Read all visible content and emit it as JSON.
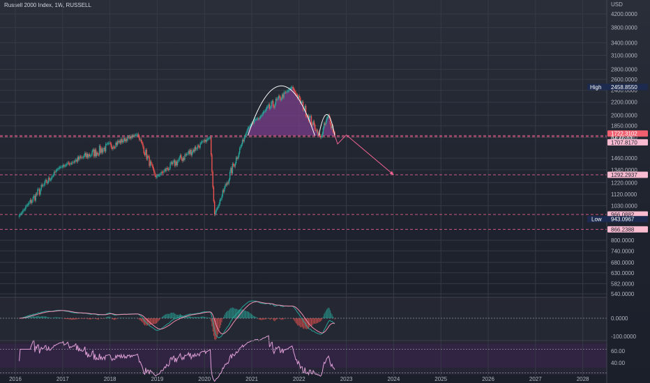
{
  "header": {
    "title": "Russell 2000 Index, 1W, RUSSELL"
  },
  "colors": {
    "up": "#26a69a",
    "down": "#ef5350",
    "level": "#f06292",
    "pattern_fill": "#7b3f8c",
    "macd": "#26a69a",
    "signal": "#f48fb1",
    "rsi": "#e1a1d8",
    "high_badge": "#1b2a4e",
    "price_badge": "#f06070",
    "level_badge": "#f8bbd0"
  },
  "chart_data": [
    {
      "type": "candlestick",
      "title": "Russell 2000 Index, 1W, RUSSELL",
      "currency": "USD",
      "scale": "log",
      "ylim": [
        520,
        4300
      ],
      "x_tick_labels": [
        "2016",
        "2017",
        "2018",
        "2019",
        "2020",
        "2021",
        "2022",
        "2023",
        "2024",
        "2025",
        "2026",
        "2027",
        "2028"
      ],
      "y_tick_labels": [
        "4200.0000",
        "3800.0000",
        "3400.0000",
        "3100.0000",
        "2800.0000",
        "2600.0000",
        "2400.0000",
        "2200.0000",
        "2000.0000",
        "1850.0000",
        "1700.0000",
        "1460.0000",
        "1340.0000",
        "1220.0000",
        "1120.0000",
        "1030.0000",
        "800.0000",
        "740.0000",
        "680.0000",
        "630.0000",
        "582.0000",
        "540.0000"
      ],
      "key_points": [
        {
          "date": "2016-02-01",
          "close": 960
        },
        {
          "date": "2016-12-01",
          "close": 1360
        },
        {
          "date": "2018-08-01",
          "close": 1740
        },
        {
          "date": "2018-12-20",
          "close": 1270
        },
        {
          "date": "2020-02-15",
          "close": 1700
        },
        {
          "date": "2020-03-18",
          "close": 966
        },
        {
          "date": "2020-12-01",
          "close": 1820
        },
        {
          "date": "2021-11-08",
          "close": 2458.855
        },
        {
          "date": "2022-06-15",
          "close": 1700
        },
        {
          "date": "2022-08-15",
          "close": 2000
        },
        {
          "date": "2022-10-03",
          "close": 1722.31
        }
      ],
      "levels": [
        {
          "value": 1722.3102,
          "label": "1722.3102",
          "sublabel": "04:46:03",
          "style": "price"
        },
        {
          "value": 1707.817,
          "label": "1707.8170",
          "style": "level"
        },
        {
          "value": 1292.2937,
          "label": "1292.2937",
          "style": "level"
        },
        {
          "value": 966.0882,
          "label": "966.0882",
          "style": "level"
        },
        {
          "value": 866.2388,
          "label": "866.2388",
          "style": "level"
        }
      ],
      "high": {
        "tag": "High",
        "value": "2458.8550"
      },
      "low": {
        "tag": "Low",
        "value": "943.0967"
      },
      "projection": [
        {
          "date": "2022-10-03",
          "close": 1722.31
        },
        {
          "date": "2022-10-25",
          "close": 1620
        },
        {
          "date": "2023-01-01",
          "close": 1730
        },
        {
          "date": "2024-01-01",
          "close": 1292.29
        }
      ]
    },
    {
      "type": "line",
      "indicator": "MACD",
      "y_tick_labels": [
        "0.0000",
        "-100.0000"
      ]
    },
    {
      "type": "line",
      "indicator": "RSI",
      "y_tick_labels": [
        "60.00",
        "40.00"
      ]
    }
  ]
}
